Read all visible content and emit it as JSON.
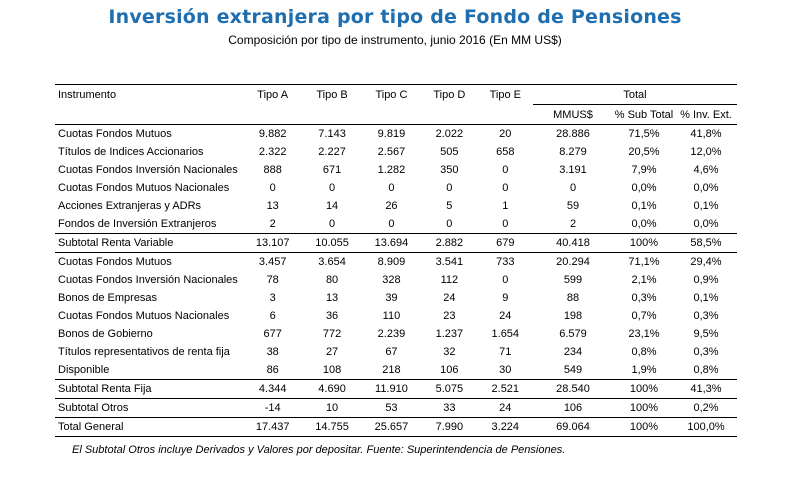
{
  "title": "Inversión extranjera por tipo de Fondo de Pensiones",
  "subtitle": "Composición por tipo de instrumento, junio 2016 (En MM US$)",
  "table": {
    "headers": {
      "instrumento": "Instrumento",
      "tipo_a": "Tipo A",
      "tipo_b": "Tipo B",
      "tipo_c": "Tipo C",
      "tipo_d": "Tipo D",
      "tipo_e": "Tipo E",
      "total": "Total",
      "mmus": "MMUS$",
      "pct_sub": "% Sub Total",
      "pct_inv": "% Inv. Ext."
    },
    "rows": [
      [
        "Cuotas Fondos Mutuos",
        "9.882",
        "7.143",
        "9.819",
        "2.022",
        "20",
        "28.886",
        "71,5%",
        "41,8%"
      ],
      [
        "Títulos de Indices Accionarios",
        "2.322",
        "2.227",
        "2.567",
        "505",
        "658",
        "8.279",
        "20,5%",
        "12,0%"
      ],
      [
        "Cuotas Fondos Inversión Nacionales",
        "888",
        "671",
        "1.282",
        "350",
        "0",
        "3.191",
        "7,9%",
        "4,6%"
      ],
      [
        "Cuotas Fondos Mutuos Nacionales",
        "0",
        "0",
        "0",
        "0",
        "0",
        "0",
        "0,0%",
        "0,0%"
      ],
      [
        "Acciones Extranjeras y ADRs",
        "13",
        "14",
        "26",
        "5",
        "1",
        "59",
        "0,1%",
        "0,1%"
      ],
      [
        "Fondos de Inversión Extranjeros",
        "2",
        "0",
        "0",
        "0",
        "0",
        "2",
        "0,0%",
        "0,0%"
      ],
      [
        "Subtotal Renta Variable",
        "13.107",
        "10.055",
        "13.694",
        "2.882",
        "679",
        "40.418",
        "100%",
        "58,5%"
      ],
      [
        "Cuotas Fondos Mutuos",
        "3.457",
        "3.654",
        "8.909",
        "3.541",
        "733",
        "20.294",
        "71,1%",
        "29,4%"
      ],
      [
        "Cuotas Fondos Inversión Nacionales",
        "78",
        "80",
        "328",
        "112",
        "0",
        "599",
        "2,1%",
        "0,9%"
      ],
      [
        "Bonos de Empresas",
        "3",
        "13",
        "39",
        "24",
        "9",
        "88",
        "0,3%",
        "0,1%"
      ],
      [
        "Cuotas Fondos Mutuos Nacionales",
        "6",
        "36",
        "110",
        "23",
        "24",
        "198",
        "0,7%",
        "0,3%"
      ],
      [
        "Bonos de Gobierno",
        "677",
        "772",
        "2.239",
        "1.237",
        "1.654",
        "6.579",
        "23,1%",
        "9,5%"
      ],
      [
        "Títulos representativos de renta fija",
        "38",
        "27",
        "67",
        "32",
        "71",
        "234",
        "0,8%",
        "0,3%"
      ],
      [
        "Disponible",
        "86",
        "108",
        "218",
        "106",
        "30",
        "549",
        "1,9%",
        "0,8%"
      ],
      [
        "Subtotal Renta Fija",
        "4.344",
        "4.690",
        "11.910",
        "5.075",
        "2.521",
        "28.540",
        "100%",
        "41,3%"
      ],
      [
        "Subtotal Otros",
        "-14",
        "10",
        "53",
        "33",
        "24",
        "106",
        "100%",
        "0,2%"
      ],
      [
        "Total General",
        "17.437",
        "14.755",
        "25.657",
        "7.990",
        "3.224",
        "69.064",
        "100%",
        "100,0%"
      ]
    ]
  },
  "footnote": "El Subtotal Otros incluye Derivados y Valores por depositar. Fuente: Superintendencia de Pensiones."
}
